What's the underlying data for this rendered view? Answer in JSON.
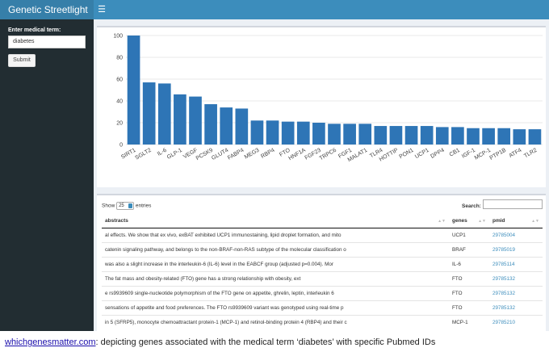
{
  "app": {
    "title": "Genetic Streetlight",
    "menu_icon": "hamburger-icon"
  },
  "sidebar": {
    "label": "Enter medical term:",
    "input_value": "diabetes",
    "submit_label": "Submit"
  },
  "chart_data": {
    "type": "bar",
    "title": "",
    "xlabel": "",
    "ylabel": "",
    "ylim": [
      0,
      100
    ],
    "yticks": [
      0,
      20,
      40,
      60,
      80,
      100
    ],
    "grid": true,
    "color": "#2e75b6",
    "categories": [
      "SIRT1",
      "SGLT2",
      "IL-6",
      "GLP-1",
      "VEGF",
      "PCSK9",
      "GLUT4",
      "FABP4",
      "MEG3",
      "RBP4",
      "FTO",
      "HNF1A",
      "FGF23",
      "TRPC6",
      "FGF1",
      "MALAT1",
      "TLR4",
      "HOTTIP",
      "PON1",
      "UCP1",
      "DPP4",
      "CB1",
      "IGF-1",
      "MCP-1",
      "PTP1B",
      "ATF4",
      "TLR2"
    ],
    "values": [
      100,
      57,
      56,
      46,
      44,
      37,
      34,
      33,
      22,
      22,
      21,
      21,
      20,
      19,
      19,
      19,
      17,
      17,
      17,
      17,
      16,
      16,
      15,
      15,
      15,
      14,
      14
    ]
  },
  "table": {
    "show_label": "Show",
    "entries_value": "25",
    "entries_label": "entries",
    "search_label": "Search:",
    "columns": [
      "abstracts",
      "genes",
      "pmid"
    ],
    "sort_icon": "sort-icon",
    "rows": [
      [
        "al effects. We show that ex vivo, exBAT exhibited UCP1 immunostaining, lipid droplet formation, and mito",
        "UCP1",
        "29785004"
      ],
      [
        "catenin signaling pathway, and belongs to the non-BRAF-non-RAS subtype of the molecular classification o",
        "BRAF",
        "29785019"
      ],
      [
        "was also a slight increase in the interleukin-6 (IL-6) level in the EABCF group (adjusted p=0.004). Mor",
        "IL-6",
        "29785114"
      ],
      [
        "The fat mass and obesity-related (FTO) gene has a strong relationship with obesity, ext",
        "FTO",
        "29785132"
      ],
      [
        "e rs9939609 single-nucleotide polymorphism of the FTO gene on appetite, ghrelin, leptin, interleukin 6",
        "FTO",
        "29785132"
      ],
      [
        "sensations of appetite and food preferences. The FTO rs9939609 variant was genotyped using real-time p",
        "FTO",
        "29785132"
      ],
      [
        "in 5 (SFRP5), monocyte chemoattractant protein-1 (MCP-1) and retinol-binding protein 4 (RBP4) and their c",
        "MCP-1",
        "29785210"
      ]
    ]
  },
  "caption": {
    "link": "whichgenesmatter.com",
    "text": ": depicting genes associated with the medical term ‘diabetes’ with specific Pubmed IDs"
  }
}
